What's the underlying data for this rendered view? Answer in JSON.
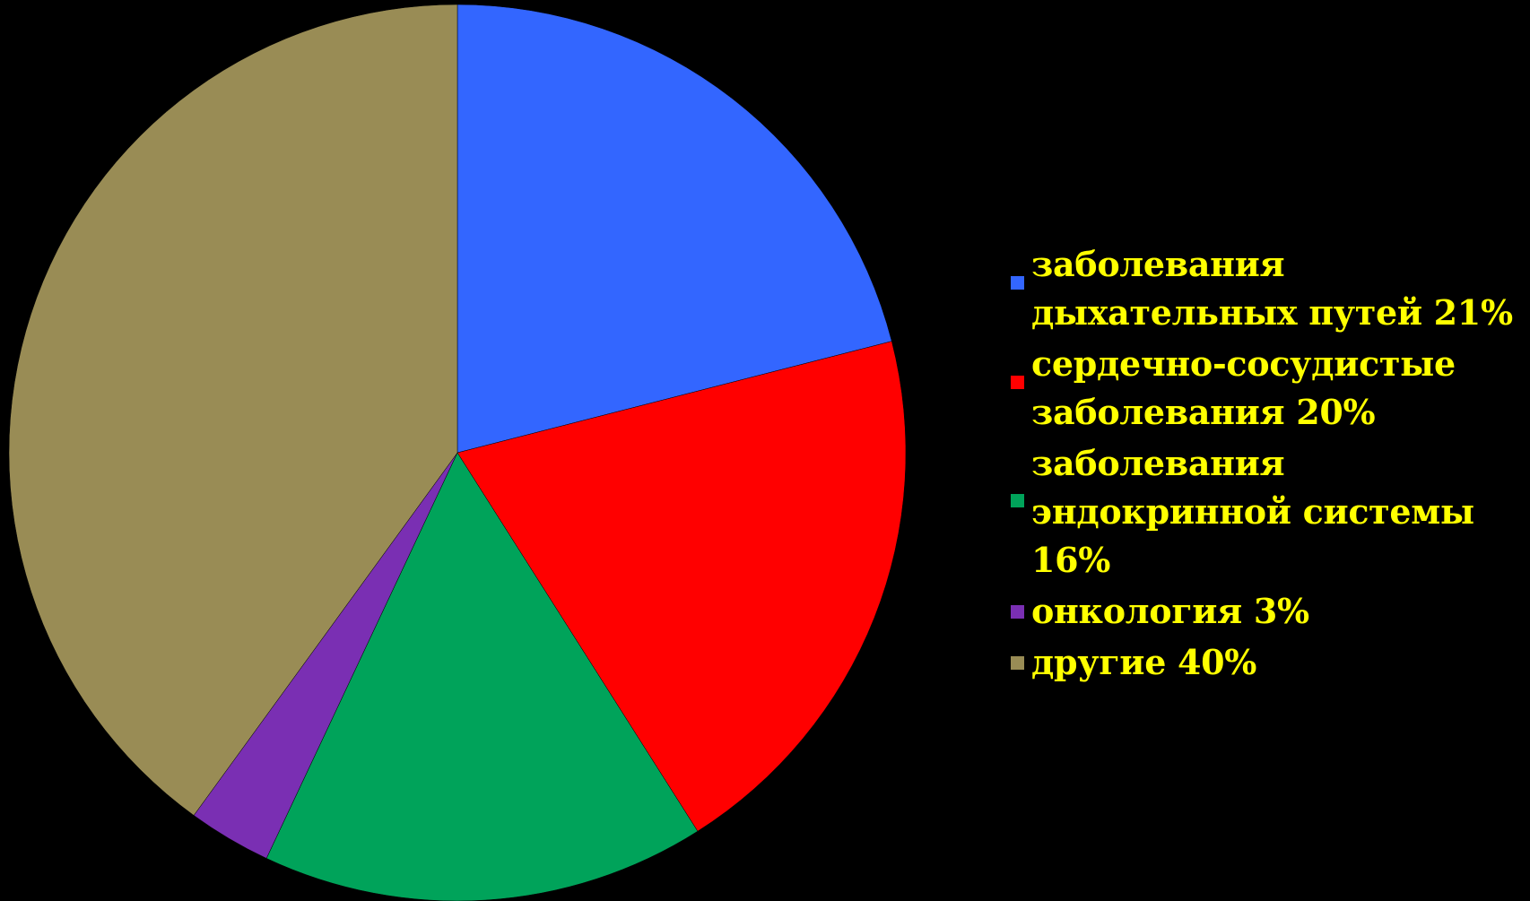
{
  "chart_data": {
    "type": "pie",
    "title": "",
    "start_angle_deg": 0,
    "direction": "clockwise",
    "legend_position": "right",
    "slices": [
      {
        "label": "заболевания дыхательных путей 21%",
        "value": 21,
        "color": "#3366ff"
      },
      {
        "label": "сердечно-сосудистые заболевания 20%",
        "value": 20,
        "color": "#ff0000"
      },
      {
        "label": "заболевания эндокринной системы 16%",
        "value": 16,
        "color": "#00a35a"
      },
      {
        "label": "онкология 3%",
        "value": 3,
        "color": "#7a2fb3"
      },
      {
        "label": "другие 40%",
        "value": 40,
        "color": "#998c55"
      }
    ]
  }
}
